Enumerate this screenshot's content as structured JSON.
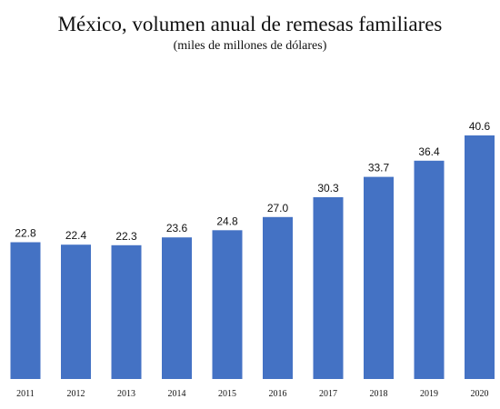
{
  "chart_data": {
    "type": "bar",
    "title": "México, volumen anual de remesas familiares",
    "subtitle": "(miles de millones de dólares)",
    "categories": [
      "2011",
      "2012",
      "2013",
      "2014",
      "2015",
      "2016",
      "2017",
      "2018",
      "2019",
      "2020"
    ],
    "values": [
      22.8,
      22.4,
      22.3,
      23.6,
      24.8,
      27.0,
      30.3,
      33.7,
      36.4,
      40.6
    ],
    "value_labels": [
      "22.8",
      "22.4",
      "22.3",
      "23.6",
      "24.8",
      "27.0",
      "30.3",
      "33.7",
      "36.4",
      "40.6"
    ],
    "xlabel": "",
    "ylabel": "",
    "ylim": [
      0,
      45
    ],
    "grid": false,
    "legend": "none",
    "bar_color": "#4472c4"
  }
}
